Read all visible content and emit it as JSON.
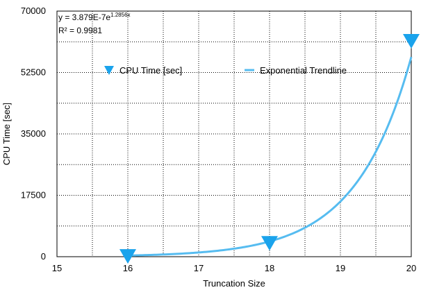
{
  "chart_data": {
    "type": "scatter",
    "xlabel": "Truncation Size",
    "ylabel": "CPU Time [sec]",
    "xlim": [
      15,
      20
    ],
    "ylim": [
      0,
      70000
    ],
    "x_ticks": [
      15,
      16,
      17,
      18,
      19,
      20
    ],
    "y_ticks": [
      0,
      17500,
      35000,
      52500,
      70000
    ],
    "grid": true,
    "legend_position": "inside-top",
    "series": [
      {
        "name": "CPU Time [sec]",
        "marker": "triangle-down",
        "color": "#1aa3ec",
        "x": [
          16,
          18,
          20
        ],
        "y": [
          180,
          3900,
          61500
        ]
      },
      {
        "name": "Exponential Trendline",
        "type": "line",
        "color": "#56bcf0",
        "model": "exponential",
        "a": 3.879e-07,
        "b": 1.2856
      }
    ],
    "annotation": {
      "equation_base": "y = 3.879E-7e",
      "equation_exponent": "1.2856x",
      "r_squared": "R² = 0.9981"
    }
  }
}
